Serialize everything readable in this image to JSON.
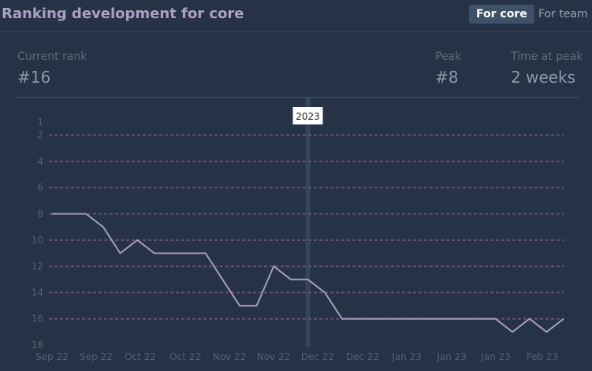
{
  "header": {
    "title": "Ranking development for core",
    "toggle_core": "For core",
    "toggle_team": "For team"
  },
  "stats": {
    "current_rank_label": "Current rank",
    "current_rank_value": "#16",
    "peak_label": "Peak",
    "peak_value": "#8",
    "time_label": "Time at peak",
    "time_value": "2 weeks"
  },
  "chart_data": {
    "type": "line",
    "y_reversed": true,
    "ylim": [
      1,
      18
    ],
    "y_ticks": [
      1,
      2,
      4,
      6,
      8,
      10,
      12,
      14,
      16,
      18
    ],
    "gridlines": [
      2,
      4,
      6,
      8,
      10,
      12,
      14,
      16
    ],
    "x_tick_labels": [
      "Sep 22",
      "Sep 22",
      "Oct 22",
      "Oct 22",
      "Nov 22",
      "Nov 22",
      "Dec 22",
      "Dec 22",
      "Jan 23",
      "Jan 23",
      "Jan 23",
      "Feb 23"
    ],
    "marker": {
      "label": "2023",
      "at_index": 15
    },
    "series": [
      {
        "values": [
          8,
          8,
          8,
          9,
          11,
          10,
          11,
          11,
          11,
          11,
          13,
          15,
          15,
          12,
          13,
          13,
          14,
          16,
          16,
          16,
          16,
          16,
          16,
          16,
          16,
          16,
          16,
          17,
          16,
          17,
          16
        ]
      }
    ],
    "colors": {
      "line": "#a79cbd",
      "grid": "#6b4f78",
      "marker_band": "#34465a",
      "background": "#263346"
    }
  }
}
